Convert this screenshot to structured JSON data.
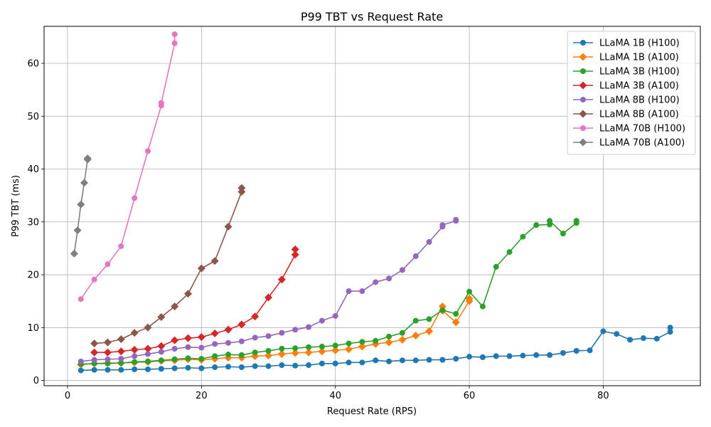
{
  "chart_data": {
    "type": "line",
    "title": "P99 TBT vs Request Rate",
    "xlabel": "Request Rate (RPS)",
    "ylabel": "P99 TBT (ms)",
    "xlim": [
      -3.5,
      94.5
    ],
    "ylim": [
      -1,
      67
    ],
    "xticks": [
      0,
      20,
      40,
      60,
      80
    ],
    "yticks": [
      0,
      10,
      20,
      30,
      40,
      50,
      60
    ],
    "grid": true,
    "legend_position": "top-right",
    "series": [
      {
        "name": "LLaMA 1B (H100)",
        "color": "#1f77b4",
        "marker": "circle",
        "x": [
          2,
          4,
          6,
          8,
          10,
          12,
          14,
          16,
          18,
          20,
          22,
          24,
          26,
          28,
          30,
          32,
          34,
          36,
          38,
          40,
          42,
          44,
          46,
          48,
          50,
          52,
          54,
          56,
          58,
          60,
          62,
          64,
          66,
          68,
          70,
          72,
          74,
          76,
          78,
          80,
          82,
          84,
          86,
          88,
          90,
          90
        ],
        "y": [
          1.9,
          2.0,
          2.0,
          2.0,
          2.1,
          2.1,
          2.2,
          2.3,
          2.4,
          2.3,
          2.5,
          2.6,
          2.5,
          2.7,
          2.7,
          2.9,
          2.8,
          2.9,
          3.2,
          3.2,
          3.4,
          3.4,
          3.8,
          3.6,
          3.8,
          3.8,
          3.9,
          3.9,
          4.1,
          4.5,
          4.4,
          4.6,
          4.6,
          4.7,
          4.8,
          4.8,
          5.2,
          5.6,
          5.7,
          9.3,
          8.8,
          7.7,
          8.0,
          7.9,
          9.2,
          10.0
        ]
      },
      {
        "name": "LLaMA 1B (A100)",
        "color": "#ff7f0e",
        "marker": "diamond",
        "x": [
          2,
          4,
          6,
          8,
          10,
          12,
          14,
          16,
          18,
          20,
          22,
          24,
          26,
          28,
          30,
          32,
          34,
          36,
          38,
          40,
          42,
          44,
          46,
          48,
          50,
          52,
          54,
          56,
          56,
          58,
          60,
          60
        ],
        "y": [
          3.0,
          3.2,
          3.3,
          3.3,
          3.4,
          3.5,
          3.7,
          3.8,
          4.0,
          3.9,
          4.1,
          4.3,
          4.3,
          4.6,
          4.7,
          5.0,
          5.2,
          5.3,
          5.5,
          5.7,
          5.9,
          6.4,
          6.9,
          7.2,
          7.7,
          8.5,
          9.3,
          14.0,
          13.2,
          11.0,
          15.0,
          15.5
        ]
      },
      {
        "name": "LLaMA 3B (H100)",
        "color": "#2ca02c",
        "marker": "circle",
        "x": [
          2,
          4,
          6,
          8,
          10,
          12,
          14,
          16,
          18,
          20,
          22,
          24,
          26,
          28,
          30,
          32,
          34,
          36,
          38,
          40,
          42,
          44,
          46,
          48,
          50,
          52,
          54,
          56,
          58,
          60,
          62,
          64,
          66,
          68,
          70,
          72,
          72,
          74,
          76,
          76
        ],
        "y": [
          3.1,
          3.2,
          3.2,
          3.3,
          3.5,
          3.6,
          3.8,
          4.0,
          4.2,
          4.1,
          4.6,
          4.9,
          4.8,
          5.3,
          5.6,
          6.0,
          6.1,
          6.3,
          6.4,
          6.6,
          7.0,
          7.3,
          7.5,
          8.3,
          9.0,
          11.3,
          11.6,
          13.3,
          12.6,
          16.8,
          14.0,
          21.5,
          24.3,
          27.2,
          29.4,
          29.5,
          30.2,
          27.8,
          29.8,
          30.2
        ]
      },
      {
        "name": "LLaMA 3B (A100)",
        "color": "#d62728",
        "marker": "diamond",
        "x": [
          4,
          6,
          8,
          10,
          12,
          14,
          16,
          18,
          20,
          22,
          24,
          26,
          28,
          30,
          32,
          34,
          34
        ],
        "y": [
          5.3,
          5.3,
          5.5,
          5.8,
          6.0,
          6.5,
          7.6,
          8.0,
          8.2,
          8.9,
          9.6,
          10.6,
          12.1,
          15.7,
          19.1,
          23.8,
          24.8
        ]
      },
      {
        "name": "LLaMA 8B (H100)",
        "color": "#9467bd",
        "marker": "circle",
        "x": [
          2,
          4,
          6,
          8,
          10,
          12,
          14,
          16,
          18,
          20,
          22,
          24,
          26,
          28,
          30,
          32,
          34,
          36,
          38,
          40,
          42,
          44,
          46,
          48,
          50,
          52,
          54,
          56,
          56,
          58,
          58
        ],
        "y": [
          3.6,
          3.9,
          4.0,
          4.1,
          4.6,
          5.0,
          5.4,
          6.0,
          6.3,
          6.2,
          6.9,
          7.1,
          7.4,
          8.1,
          8.4,
          9.0,
          9.6,
          10.1,
          11.3,
          12.2,
          16.9,
          16.9,
          18.6,
          19.3,
          20.9,
          23.5,
          26.2,
          29.1,
          29.4,
          30.2,
          30.4
        ]
      },
      {
        "name": "LLaMA 8B (A100)",
        "color": "#8c564b",
        "marker": "diamond",
        "x": [
          4,
          6,
          8,
          10,
          12,
          14,
          16,
          18,
          20,
          22,
          24,
          26,
          26
        ],
        "y": [
          7.0,
          7.2,
          7.8,
          9.0,
          10.0,
          12.0,
          14.0,
          16.4,
          21.2,
          22.6,
          29.1,
          35.7,
          36.4
        ]
      },
      {
        "name": "LLaMA 70B (H100)",
        "color": "#e377c2",
        "marker": "circle",
        "x": [
          2,
          4,
          6,
          8,
          10,
          12,
          14,
          14,
          16,
          16
        ],
        "y": [
          15.4,
          19.1,
          22.0,
          25.4,
          34.5,
          43.4,
          52.0,
          52.5,
          63.8,
          65.5
        ]
      },
      {
        "name": "LLaMA 70B (A100)",
        "color": "#7f7f7f",
        "marker": "diamond",
        "x": [
          1,
          1.5,
          2,
          2.5,
          3,
          3
        ],
        "y": [
          24.0,
          28.4,
          33.3,
          37.4,
          41.8,
          42.0
        ]
      }
    ]
  }
}
